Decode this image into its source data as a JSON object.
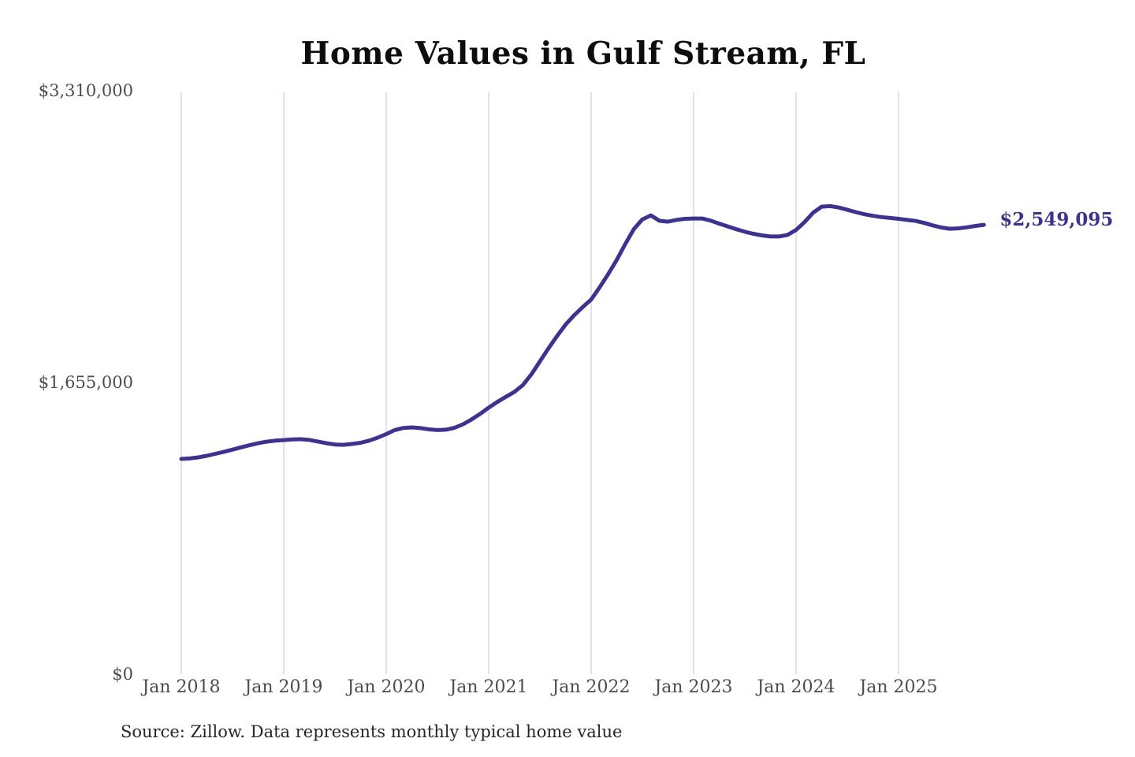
{
  "title": "Home Values in Gulf Stream, FL",
  "end_label": "$2,549,095",
  "source": "Source: Zillow. Data represents monthly typical home value",
  "colors": {
    "line": "#3c3296",
    "grid": "#c6c6c6",
    "axis_text": "#4d4d4d",
    "title_text": "#0d0d0d",
    "source_text": "#262626",
    "background": "#ffffff"
  },
  "y_axis": {
    "ticks": [
      {
        "label": "$3,310,000",
        "value": 3310000
      },
      {
        "label": "$1,655,000",
        "value": 1655000
      },
      {
        "label": "$0",
        "value": 0
      }
    ]
  },
  "x_axis": {
    "ticks": [
      {
        "label": "Jan 2018",
        "month_index": 0
      },
      {
        "label": "Jan 2019",
        "month_index": 12
      },
      {
        "label": "Jan 2020",
        "month_index": 24
      },
      {
        "label": "Jan 2021",
        "month_index": 36
      },
      {
        "label": "Jan 2022",
        "month_index": 48
      },
      {
        "label": "Jan 2023",
        "month_index": 60
      },
      {
        "label": "Jan 2024",
        "month_index": 72
      },
      {
        "label": "Jan 2025",
        "month_index": 84
      }
    ]
  },
  "chart_data": {
    "type": "line",
    "title": "Home Values in Gulf Stream, FL",
    "xlabel": "",
    "ylabel": "",
    "ylim": [
      0,
      3310000
    ],
    "grid": "vertical-only",
    "legend": "none",
    "line_color": "#3c3296",
    "x_start": "2018-01",
    "x_end": "2025-11",
    "last_value": 2549095,
    "last_value_label": "$2,549,095",
    "months": [
      "2018-01",
      "2018-02",
      "2018-03",
      "2018-04",
      "2018-05",
      "2018-06",
      "2018-07",
      "2018-08",
      "2018-09",
      "2018-10",
      "2018-11",
      "2018-12",
      "2019-01",
      "2019-02",
      "2019-03",
      "2019-04",
      "2019-05",
      "2019-06",
      "2019-07",
      "2019-08",
      "2019-09",
      "2019-10",
      "2019-11",
      "2019-12",
      "2020-01",
      "2020-02",
      "2020-03",
      "2020-04",
      "2020-05",
      "2020-06",
      "2020-07",
      "2020-08",
      "2020-09",
      "2020-10",
      "2020-11",
      "2020-12",
      "2021-01",
      "2021-02",
      "2021-03",
      "2021-04",
      "2021-05",
      "2021-06",
      "2021-07",
      "2021-08",
      "2021-09",
      "2021-10",
      "2021-11",
      "2021-12",
      "2022-01",
      "2022-02",
      "2022-03",
      "2022-04",
      "2022-05",
      "2022-06",
      "2022-07",
      "2022-08",
      "2022-09",
      "2022-10",
      "2022-11",
      "2022-12",
      "2023-01",
      "2023-02",
      "2023-03",
      "2023-04",
      "2023-05",
      "2023-06",
      "2023-07",
      "2023-08",
      "2023-09",
      "2023-10",
      "2023-11",
      "2023-12",
      "2024-01",
      "2024-02",
      "2024-03",
      "2024-04",
      "2024-05",
      "2024-06",
      "2024-07",
      "2024-08",
      "2024-09",
      "2024-10",
      "2024-11",
      "2024-12",
      "2025-01",
      "2025-02",
      "2025-03",
      "2025-04",
      "2025-05",
      "2025-06",
      "2025-07",
      "2025-08",
      "2025-09",
      "2025-10",
      "2025-11"
    ],
    "values": [
      1221000,
      1224000,
      1230000,
      1239000,
      1250000,
      1262000,
      1274000,
      1287000,
      1299000,
      1310000,
      1319000,
      1325000,
      1328000,
      1332000,
      1333000,
      1329000,
      1320000,
      1310000,
      1303000,
      1301000,
      1306000,
      1313000,
      1325000,
      1342000,
      1362000,
      1385000,
      1397000,
      1400000,
      1396000,
      1389000,
      1385000,
      1387000,
      1398000,
      1418000,
      1445000,
      1477000,
      1512000,
      1544000,
      1573000,
      1601000,
      1640000,
      1701000,
      1775000,
      1848000,
      1918000,
      1983000,
      2035000,
      2082000,
      2125000,
      2195000,
      2270000,
      2350000,
      2440000,
      2525000,
      2580000,
      2603000,
      2572000,
      2567000,
      2577000,
      2583000,
      2585000,
      2585000,
      2573000,
      2556000,
      2540000,
      2524000,
      2510000,
      2498000,
      2489000,
      2483000,
      2483000,
      2492000,
      2520000,
      2565000,
      2618000,
      2652000,
      2655000,
      2647000,
      2634000,
      2621000,
      2609000,
      2600000,
      2593000,
      2588000,
      2583000,
      2577000,
      2571000,
      2560000,
      2546000,
      2534000,
      2527000,
      2529000,
      2535000,
      2543000,
      2549095
    ]
  }
}
